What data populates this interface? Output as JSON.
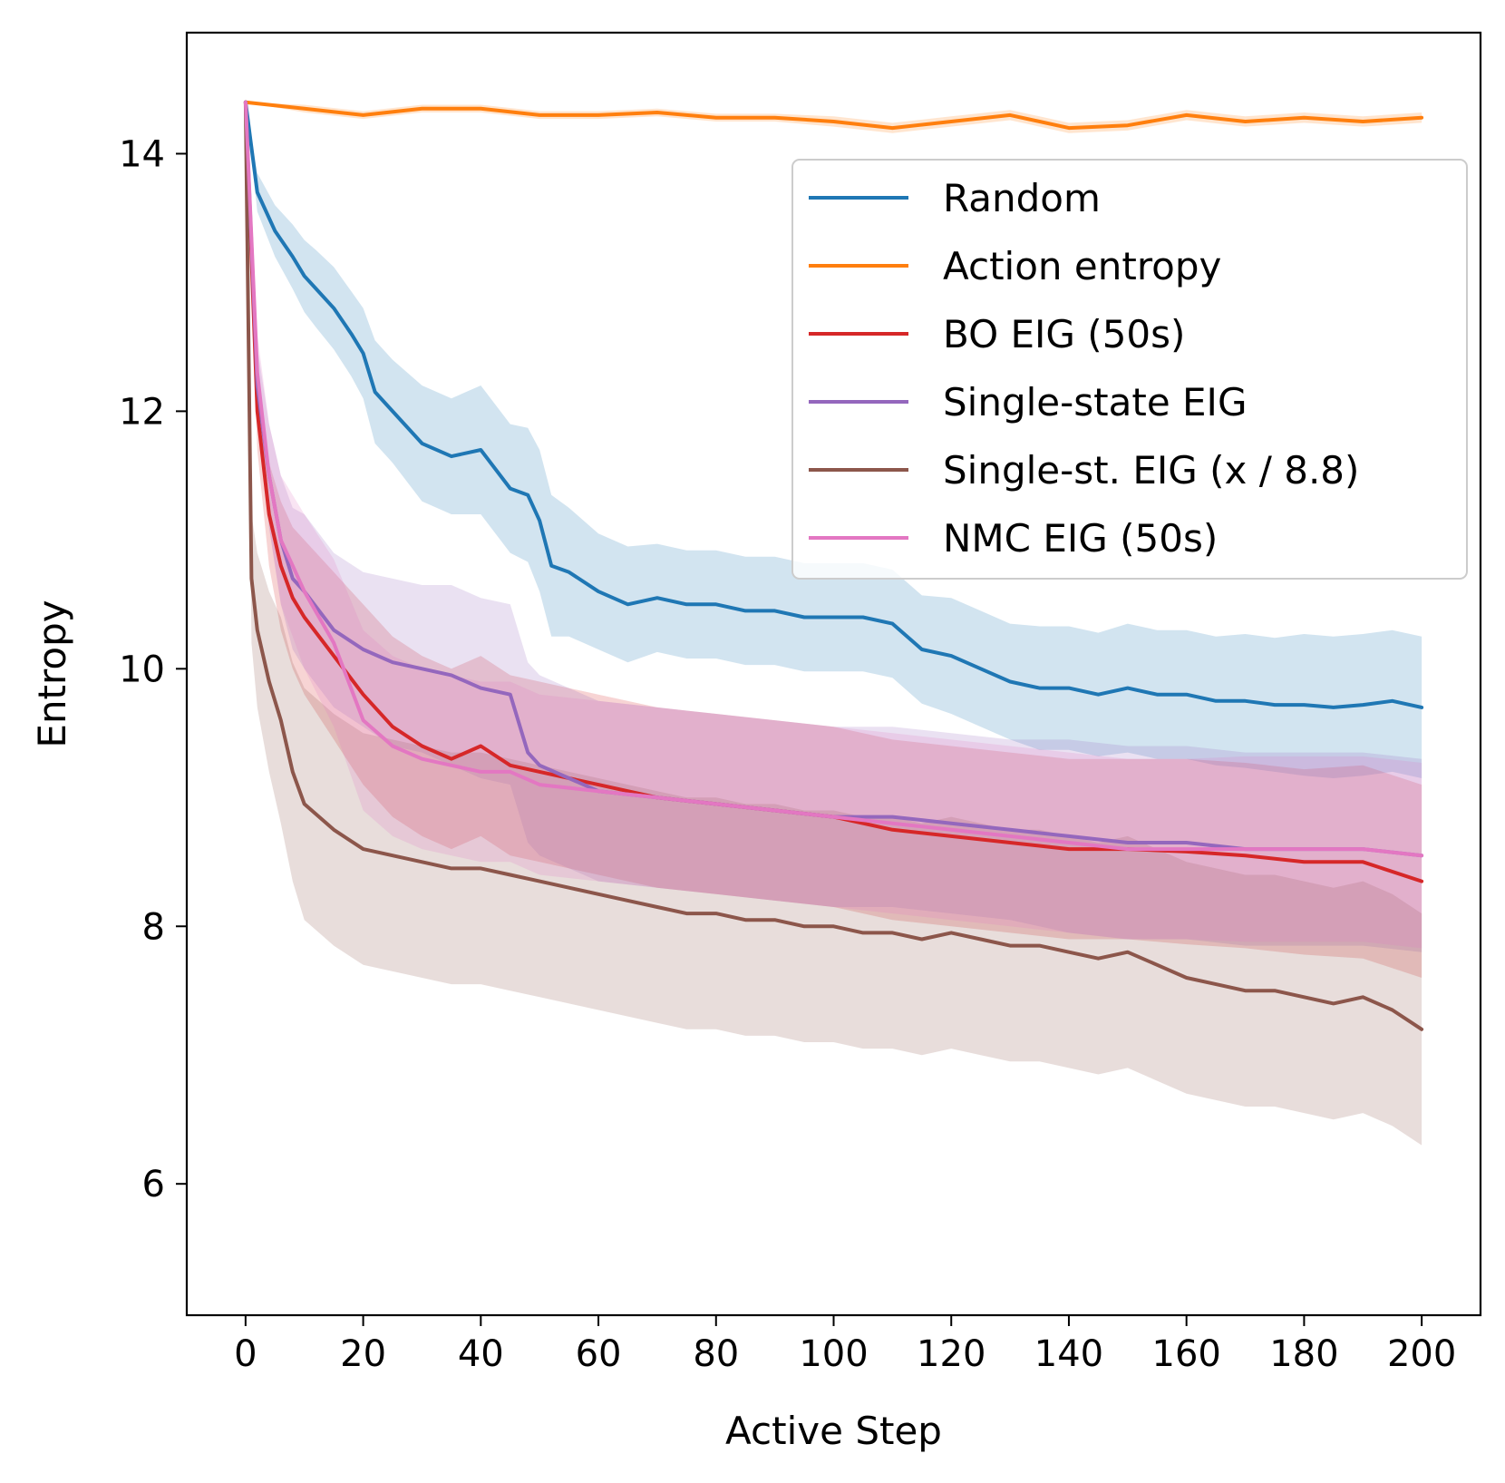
{
  "chart_data": {
    "type": "line",
    "title": "",
    "xlabel": "Active Step",
    "ylabel": "Entropy",
    "xlim": [
      -10,
      210
    ],
    "ylim": [
      4.98,
      14.94
    ],
    "xticks": [
      0,
      20,
      40,
      60,
      80,
      100,
      120,
      140,
      160,
      180,
      200
    ],
    "yticks": [
      6,
      8,
      10,
      12,
      14
    ],
    "legend_position": "top-right",
    "grid": false,
    "series": [
      {
        "name": "Random",
        "color": "#1f77b4",
        "x": [
          0,
          2,
          5,
          8,
          10,
          12,
          15,
          18,
          20,
          22,
          25,
          30,
          35,
          40,
          45,
          48,
          50,
          52,
          55,
          60,
          65,
          70,
          75,
          80,
          85,
          90,
          95,
          100,
          105,
          110,
          115,
          120,
          125,
          130,
          135,
          140,
          145,
          150,
          155,
          160,
          165,
          170,
          175,
          180,
          185,
          190,
          195,
          200
        ],
        "y": [
          14.4,
          13.7,
          13.4,
          13.2,
          13.05,
          12.95,
          12.8,
          12.6,
          12.45,
          12.15,
          12.0,
          11.75,
          11.65,
          11.7,
          11.4,
          11.35,
          11.15,
          10.8,
          10.75,
          10.6,
          10.5,
          10.55,
          10.5,
          10.5,
          10.45,
          10.45,
          10.4,
          10.4,
          10.4,
          10.35,
          10.15,
          10.1,
          10.0,
          9.9,
          9.85,
          9.85,
          9.8,
          9.85,
          9.8,
          9.8,
          9.75,
          9.75,
          9.72,
          9.72,
          9.7,
          9.72,
          9.75,
          9.7
        ],
        "band_half_width": [
          0.0,
          0.15,
          0.2,
          0.25,
          0.28,
          0.3,
          0.32,
          0.33,
          0.35,
          0.4,
          0.4,
          0.45,
          0.45,
          0.5,
          0.5,
          0.52,
          0.55,
          0.55,
          0.5,
          0.45,
          0.45,
          0.42,
          0.42,
          0.42,
          0.42,
          0.42,
          0.42,
          0.42,
          0.42,
          0.42,
          0.42,
          0.45,
          0.45,
          0.45,
          0.48,
          0.48,
          0.48,
          0.5,
          0.5,
          0.5,
          0.5,
          0.52,
          0.52,
          0.55,
          0.55,
          0.55,
          0.55,
          0.55
        ]
      },
      {
        "name": "Action entropy",
        "color": "#ff7f0e",
        "x": [
          0,
          10,
          20,
          30,
          40,
          50,
          60,
          70,
          80,
          90,
          100,
          110,
          120,
          130,
          140,
          150,
          160,
          170,
          180,
          190,
          200
        ],
        "y": [
          14.4,
          14.35,
          14.3,
          14.35,
          14.35,
          14.3,
          14.3,
          14.32,
          14.28,
          14.28,
          14.25,
          14.2,
          14.25,
          14.3,
          14.2,
          14.22,
          14.3,
          14.25,
          14.28,
          14.25,
          14.28
        ],
        "band_half_width": [
          0.0,
          0.03,
          0.03,
          0.03,
          0.03,
          0.03,
          0.03,
          0.03,
          0.03,
          0.03,
          0.04,
          0.04,
          0.04,
          0.04,
          0.04,
          0.04,
          0.04,
          0.04,
          0.04,
          0.04,
          0.04
        ]
      },
      {
        "name": "BO EIG (50s)",
        "color": "#d62728",
        "x": [
          0,
          2,
          4,
          6,
          8,
          10,
          15,
          20,
          25,
          30,
          35,
          40,
          45,
          50,
          60,
          70,
          80,
          90,
          100,
          110,
          120,
          130,
          140,
          150,
          160,
          170,
          180,
          190,
          200
        ],
        "y": [
          14.4,
          12.0,
          11.2,
          10.8,
          10.55,
          10.4,
          10.1,
          9.8,
          9.55,
          9.4,
          9.3,
          9.4,
          9.25,
          9.2,
          9.1,
          9.0,
          8.95,
          8.9,
          8.85,
          8.75,
          8.7,
          8.65,
          8.6,
          8.6,
          8.58,
          8.55,
          8.5,
          8.5,
          8.35
        ],
        "band_half_width": [
          0.0,
          0.3,
          0.4,
          0.5,
          0.55,
          0.6,
          0.65,
          0.7,
          0.7,
          0.7,
          0.7,
          0.7,
          0.7,
          0.7,
          0.7,
          0.7,
          0.7,
          0.7,
          0.7,
          0.7,
          0.7,
          0.7,
          0.7,
          0.7,
          0.72,
          0.72,
          0.72,
          0.75,
          0.75
        ]
      },
      {
        "name": "Single-state EIG",
        "color": "#9467bd",
        "x": [
          0,
          2,
          4,
          6,
          8,
          10,
          15,
          20,
          25,
          30,
          35,
          40,
          45,
          48,
          50,
          55,
          60,
          70,
          80,
          90,
          100,
          110,
          120,
          130,
          140,
          150,
          160,
          170,
          180,
          190,
          200
        ],
        "y": [
          14.4,
          12.2,
          11.5,
          11.0,
          10.7,
          10.6,
          10.3,
          10.15,
          10.05,
          10.0,
          9.95,
          9.85,
          9.8,
          9.35,
          9.25,
          9.15,
          9.05,
          9.0,
          8.95,
          8.9,
          8.85,
          8.85,
          8.8,
          8.75,
          8.7,
          8.65,
          8.65,
          8.6,
          8.6,
          8.6,
          8.55
        ],
        "band_half_width": [
          0.0,
          0.3,
          0.4,
          0.5,
          0.55,
          0.6,
          0.6,
          0.6,
          0.65,
          0.65,
          0.7,
          0.7,
          0.7,
          0.7,
          0.7,
          0.7,
          0.7,
          0.7,
          0.7,
          0.7,
          0.7,
          0.7,
          0.7,
          0.7,
          0.75,
          0.75,
          0.75,
          0.75,
          0.75,
          0.75,
          0.75
        ]
      },
      {
        "name": "Single-st. EIG (x / 8.8)",
        "color": "#8c564b",
        "x": [
          0,
          1,
          2,
          4,
          6,
          8,
          10,
          15,
          20,
          25,
          30,
          35,
          40,
          45,
          50,
          55,
          60,
          65,
          70,
          75,
          80,
          85,
          90,
          95,
          100,
          105,
          110,
          115,
          120,
          125,
          130,
          135,
          140,
          145,
          150,
          155,
          160,
          165,
          170,
          175,
          180,
          185,
          190,
          195,
          200
        ],
        "y": [
          14.4,
          10.7,
          10.3,
          9.9,
          9.6,
          9.2,
          8.95,
          8.75,
          8.6,
          8.55,
          8.5,
          8.45,
          8.45,
          8.4,
          8.35,
          8.3,
          8.25,
          8.2,
          8.15,
          8.1,
          8.1,
          8.05,
          8.05,
          8.0,
          8.0,
          7.95,
          7.95,
          7.9,
          7.95,
          7.9,
          7.85,
          7.85,
          7.8,
          7.75,
          7.8,
          7.7,
          7.6,
          7.55,
          7.5,
          7.5,
          7.45,
          7.4,
          7.45,
          7.35,
          7.2
        ],
        "band_half_width": [
          0.0,
          0.5,
          0.6,
          0.7,
          0.8,
          0.85,
          0.9,
          0.9,
          0.9,
          0.9,
          0.9,
          0.9,
          0.9,
          0.9,
          0.9,
          0.9,
          0.9,
          0.9,
          0.9,
          0.9,
          0.9,
          0.9,
          0.9,
          0.9,
          0.9,
          0.9,
          0.9,
          0.9,
          0.9,
          0.9,
          0.9,
          0.9,
          0.9,
          0.9,
          0.9,
          0.9,
          0.9,
          0.9,
          0.9,
          0.9,
          0.9,
          0.9,
          0.9,
          0.9,
          0.9
        ]
      },
      {
        "name": "NMC EIG (50s)",
        "color": "#e377c2",
        "x": [
          0,
          2,
          4,
          6,
          8,
          10,
          15,
          20,
          25,
          30,
          35,
          40,
          45,
          50,
          60,
          70,
          80,
          90,
          100,
          110,
          120,
          130,
          140,
          150,
          160,
          170,
          180,
          190,
          200
        ],
        "y": [
          14.4,
          12.3,
          11.5,
          11.0,
          10.8,
          10.6,
          10.2,
          9.6,
          9.4,
          9.3,
          9.25,
          9.2,
          9.2,
          9.1,
          9.05,
          9.0,
          8.95,
          8.9,
          8.85,
          8.8,
          8.75,
          8.7,
          8.65,
          8.6,
          8.6,
          8.6,
          8.6,
          8.6,
          8.55
        ],
        "band_half_width": [
          0.0,
          0.3,
          0.4,
          0.5,
          0.55,
          0.6,
          0.65,
          0.7,
          0.7,
          0.7,
          0.7,
          0.7,
          0.7,
          0.7,
          0.7,
          0.7,
          0.7,
          0.7,
          0.7,
          0.7,
          0.7,
          0.7,
          0.7,
          0.7,
          0.7,
          0.72,
          0.72,
          0.72,
          0.72
        ]
      }
    ]
  }
}
